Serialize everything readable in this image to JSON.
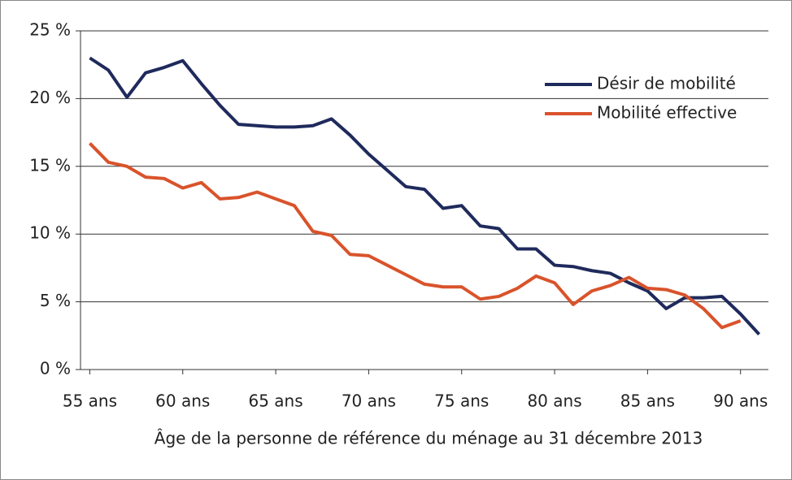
{
  "chart_data": {
    "type": "line",
    "x_label": "Âge  de la personne de référence du ménage au 31 décembre 2013",
    "x": [
      55,
      56,
      57,
      58,
      59,
      60,
      61,
      62,
      63,
      64,
      65,
      66,
      67,
      68,
      69,
      70,
      71,
      72,
      73,
      74,
      75,
      76,
      77,
      78,
      79,
      80,
      81,
      82,
      83,
      84,
      85,
      86,
      87,
      88,
      89,
      90,
      91
    ],
    "series": [
      {
        "name": "Désir de mobilité",
        "color": "#1f2a5c",
        "values": [
          23.0,
          22.1,
          20.1,
          21.9,
          22.3,
          22.8,
          21.1,
          19.5,
          18.1,
          18.0,
          17.9,
          17.9,
          18.0,
          18.5,
          17.3,
          15.9,
          14.7,
          13.5,
          13.3,
          11.9,
          12.1,
          10.6,
          10.4,
          8.9,
          8.9,
          7.7,
          7.6,
          7.3,
          7.1,
          6.4,
          5.8,
          4.5,
          5.3,
          5.3,
          5.4,
          4.1,
          2.6
        ]
      },
      {
        "name": "Mobilité effective",
        "color": "#d9532b",
        "values": [
          16.7,
          15.3,
          15.0,
          14.2,
          14.1,
          13.4,
          13.8,
          12.6,
          12.7,
          13.1,
          12.6,
          12.1,
          10.2,
          9.9,
          8.5,
          8.4,
          7.7,
          7.0,
          6.3,
          6.1,
          6.1,
          5.2,
          5.4,
          6.0,
          6.9,
          6.4,
          4.8,
          5.8,
          6.2,
          6.8,
          6.0,
          5.9,
          5.5,
          4.5,
          3.1,
          3.6,
          null
        ]
      }
    ],
    "xlim": [
      54.5,
      91.5
    ],
    "xticks": [
      {
        "value": 55,
        "label": "55 ans"
      },
      {
        "value": 60,
        "label": "60 ans"
      },
      {
        "value": 65,
        "label": "65 ans"
      },
      {
        "value": 70,
        "label": "70 ans"
      },
      {
        "value": 75,
        "label": "75 ans"
      },
      {
        "value": 80,
        "label": "80 ans"
      },
      {
        "value": 85,
        "label": "85 ans"
      },
      {
        "value": 90,
        "label": "90 ans"
      }
    ],
    "ylim": [
      0,
      25
    ],
    "yticks": [
      {
        "value": 0,
        "label": "0 %"
      },
      {
        "value": 5,
        "label": "5 %"
      },
      {
        "value": 10,
        "label": "10 %"
      },
      {
        "value": 15,
        "label": "15 %"
      },
      {
        "value": 20,
        "label": "20 %"
      },
      {
        "value": 25,
        "label": "25 %"
      }
    ],
    "grid": true,
    "legend": "top-right"
  }
}
